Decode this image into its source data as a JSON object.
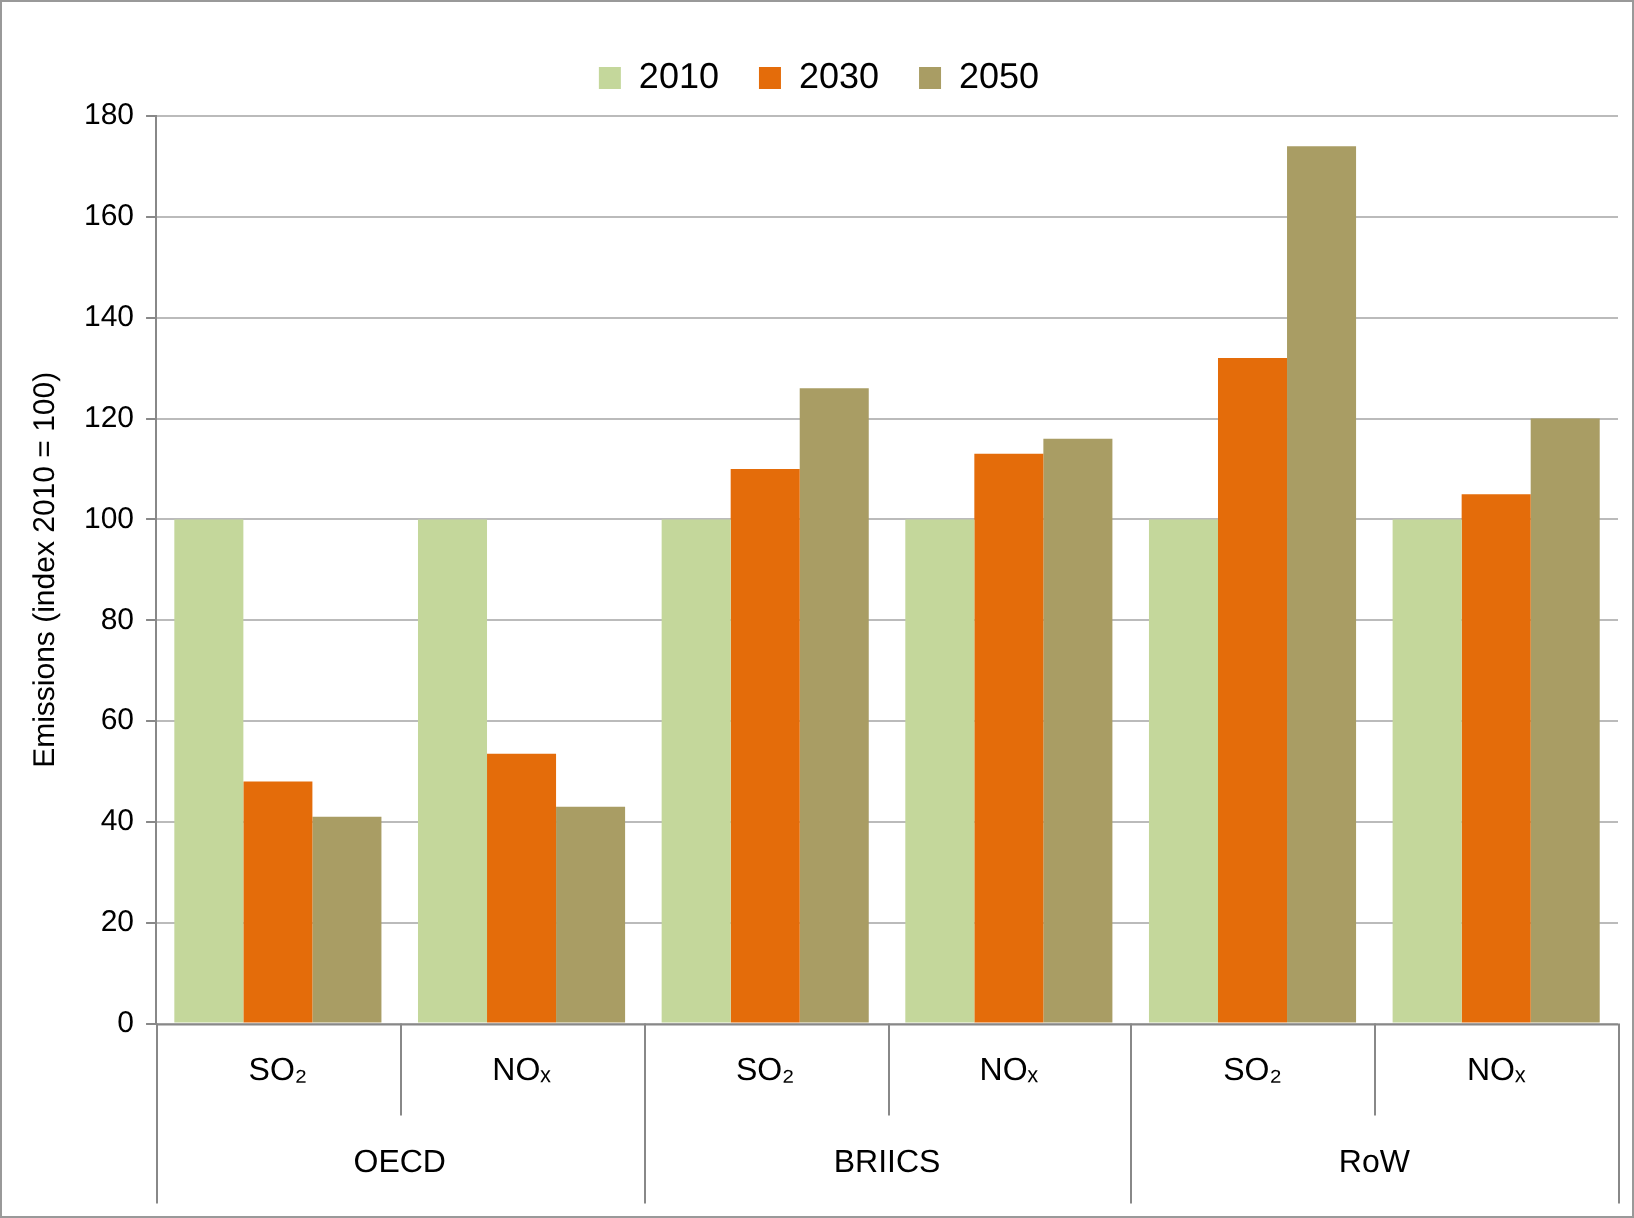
{
  "chart_data": {
    "type": "bar",
    "ylabel": "Emissions (index 2010 = 100)",
    "categories": [
      "SO₂",
      "NOₓ",
      "SO₂",
      "NOₓ",
      "SO₂",
      "NOₓ"
    ],
    "series": [
      {
        "name": "2010",
        "color": "#c4d79b",
        "values": [
          100,
          100,
          100,
          100,
          100,
          100
        ]
      },
      {
        "name": "2030",
        "color": "#e46c0a",
        "values": [
          48,
          53.5,
          110,
          113,
          132,
          105
        ]
      },
      {
        "name": "2050",
        "color": "#a99d64",
        "values": [
          41,
          43,
          126,
          116,
          174,
          120
        ]
      }
    ],
    "annotations": [
      "OECD",
      "BRIICS",
      "RoW"
    ],
    "ylim": [
      0,
      180
    ],
    "yticks": [
      0,
      20,
      40,
      60,
      80,
      100,
      120,
      140,
      160,
      180
    ],
    "grid": "y",
    "legend": "top"
  }
}
